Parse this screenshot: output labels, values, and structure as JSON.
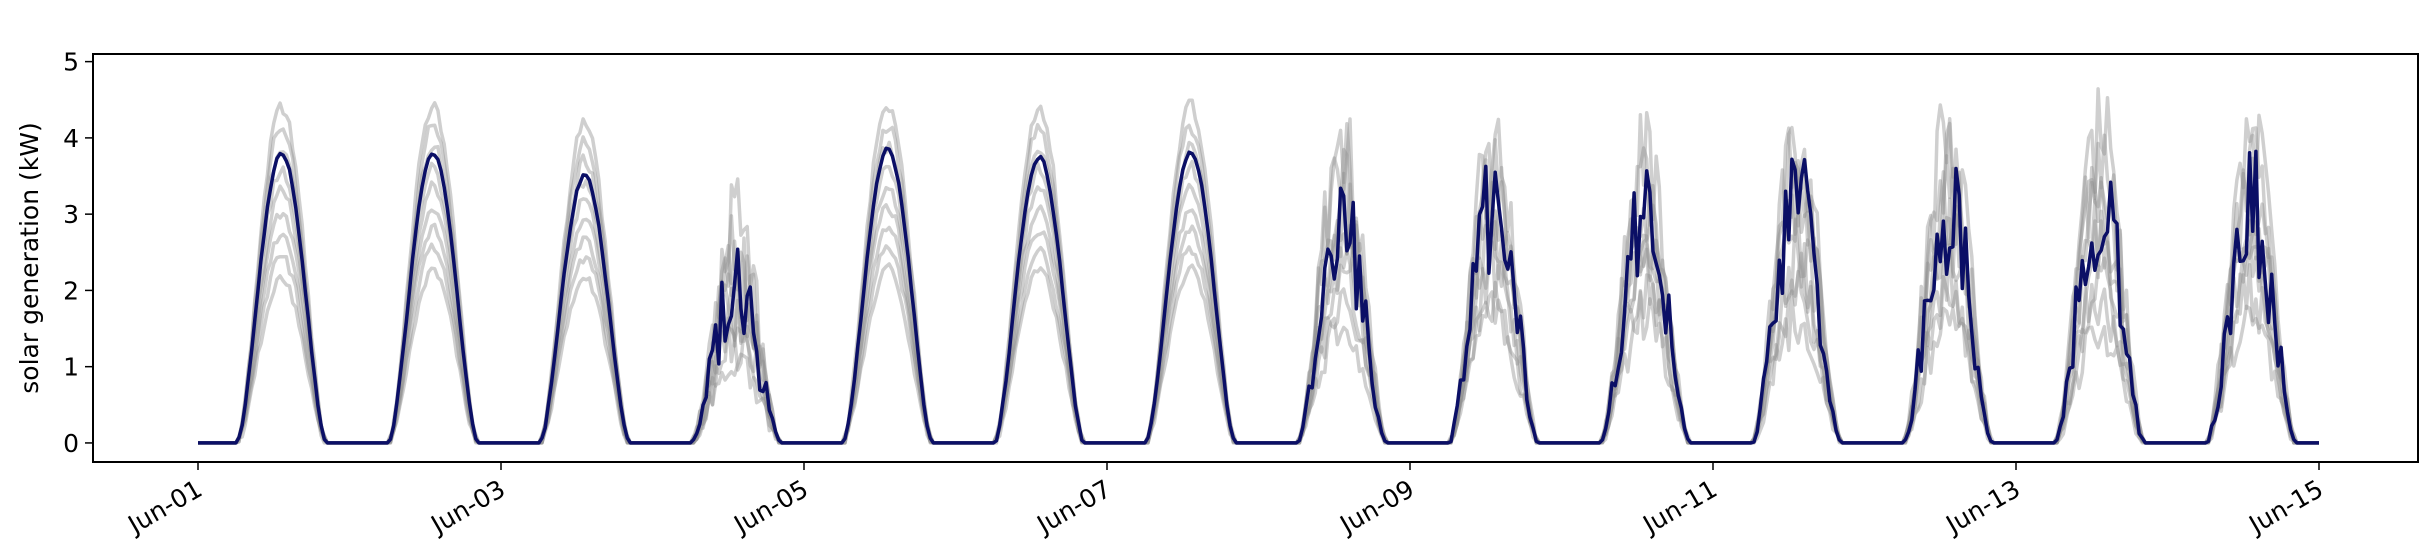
{
  "chart_data": {
    "type": "line",
    "title": "",
    "xlabel": "",
    "ylabel": "solar generation (kW)",
    "xlim": [
      "2024-05-31T16:00",
      "2024-06-15T08:00"
    ],
    "ylim": [
      -0.25,
      5.1
    ],
    "yticks": [
      0,
      1,
      2,
      3,
      4,
      5
    ],
    "xticks": [
      "Jun-01",
      "Jun-03",
      "Jun-05",
      "Jun-07",
      "Jun-09",
      "Jun-11",
      "Jun-13",
      "Jun-15"
    ],
    "grid": false,
    "legend": "none",
    "colors": {
      "highlight_series": "#0b0f66",
      "ensemble_series": "#8c8c8c"
    },
    "series_description": "Daily solar generation curves: grey ensemble traces with one highlighted navy series",
    "daily_peaks_kw": [
      {
        "day": "Jun-01",
        "highlight": 3.8,
        "ensemble_max": 4.5,
        "ensemble_min": 2.2
      },
      {
        "day": "Jun-02",
        "highlight": 3.8,
        "ensemble_max": 4.5,
        "ensemble_min": 2.3
      },
      {
        "day": "Jun-03",
        "highlight": 3.5,
        "ensemble_max": 4.25,
        "ensemble_min": 2.2
      },
      {
        "day": "Jun-04",
        "highlight": 2.6,
        "ensemble_max": 3.5,
        "ensemble_min": 1.5
      },
      {
        "day": "Jun-05",
        "highlight": 3.85,
        "ensemble_max": 4.5,
        "ensemble_min": 2.3
      },
      {
        "day": "Jun-06",
        "highlight": 3.75,
        "ensemble_max": 4.45,
        "ensemble_min": 2.3
      },
      {
        "day": "Jun-07",
        "highlight": 3.8,
        "ensemble_max": 4.5,
        "ensemble_min": 2.3
      },
      {
        "day": "Jun-08",
        "highlight": 3.6,
        "ensemble_max": 4.6,
        "ensemble_min": 2.0
      },
      {
        "day": "Jun-09",
        "highlight": 4.0,
        "ensemble_max": 4.75,
        "ensemble_min": 2.0
      },
      {
        "day": "Jun-10",
        "highlight": 3.8,
        "ensemble_max": 4.4,
        "ensemble_min": 2.0
      },
      {
        "day": "Jun-11",
        "highlight": 4.0,
        "ensemble_max": 4.75,
        "ensemble_min": 2.0
      },
      {
        "day": "Jun-12",
        "highlight": 4.0,
        "ensemble_max": 4.75,
        "ensemble_min": 2.0
      },
      {
        "day": "Jun-13",
        "highlight": 4.0,
        "ensemble_max": 4.85,
        "ensemble_min": 1.8
      },
      {
        "day": "Jun-14",
        "highlight": 3.95,
        "ensemble_max": 4.75,
        "ensemble_min": 2.0
      }
    ]
  }
}
